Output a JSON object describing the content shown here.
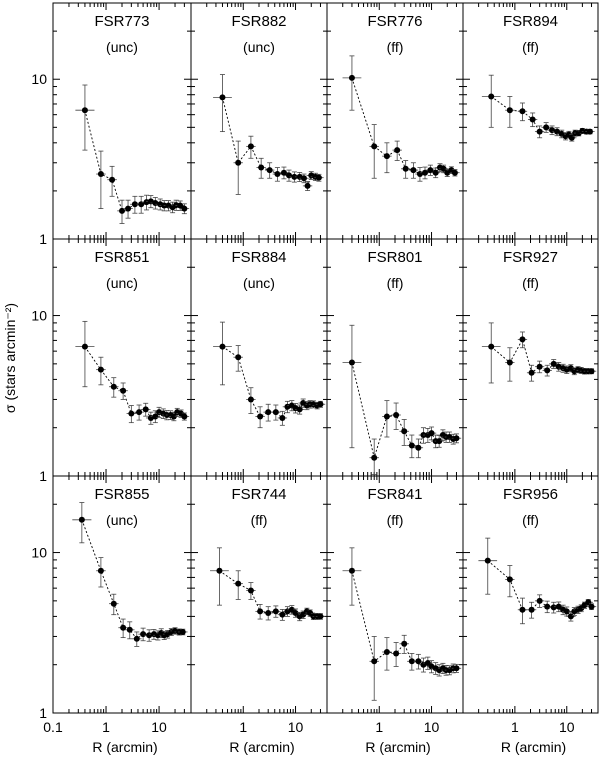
{
  "figure": {
    "xlabel": "R (arcmin)",
    "ylabel": "σ (stars arcmin⁻²)",
    "x_tick_labels": [
      "0.1",
      "1",
      "10"
    ],
    "y_tick_labels": [
      "1",
      "10"
    ],
    "last_col_x_tick_labels": [
      "0.1",
      "1",
      "10"
    ]
  },
  "chart_data": [
    {
      "type": "scatter",
      "panel": "FSR773",
      "label": "(unc)",
      "xscale": "log",
      "yscale": "log",
      "xlim": [
        0.1,
        40
      ],
      "ylim": [
        1,
        30
      ],
      "x": [
        0.4,
        0.8,
        1.3,
        2.0,
        2.6,
        3.5,
        4.6,
        5.8,
        7.0,
        8.5,
        10.5,
        12.5,
        15.0,
        18.0,
        21.0,
        25.0,
        30.0
      ],
      "y": [
        6.4,
        2.55,
        2.35,
        1.5,
        1.55,
        1.65,
        1.65,
        1.7,
        1.72,
        1.68,
        1.65,
        1.62,
        1.62,
        1.58,
        1.63,
        1.62,
        1.55
      ],
      "yerr": [
        2.8,
        1.0,
        0.5,
        0.25,
        0.2,
        0.2,
        0.2,
        0.18,
        0.15,
        0.14,
        0.13,
        0.12,
        0.12,
        0.12,
        0.12,
        0.11,
        0.11
      ]
    },
    {
      "type": "scatter",
      "panel": "FSR882",
      "label": "(unc)",
      "xscale": "log",
      "yscale": "log",
      "xlim": [
        0.1,
        40
      ],
      "ylim": [
        1,
        30
      ],
      "x": [
        0.4,
        0.8,
        1.4,
        2.2,
        3.2,
        4.5,
        6.0,
        7.5,
        9.5,
        12.0,
        14.5,
        17.0,
        20.0,
        24.0,
        28.0
      ],
      "y": [
        7.7,
        3.0,
        3.8,
        2.8,
        2.7,
        2.55,
        2.6,
        2.5,
        2.45,
        2.45,
        2.4,
        2.15,
        2.5,
        2.45,
        2.42
      ],
      "yerr": [
        3.0,
        1.1,
        0.6,
        0.4,
        0.3,
        0.25,
        0.22,
        0.2,
        0.18,
        0.16,
        0.15,
        0.14,
        0.14,
        0.13,
        0.12
      ]
    },
    {
      "type": "scatter",
      "panel": "FSR776",
      "label": "(ff)",
      "xscale": "log",
      "yscale": "log",
      "xlim": [
        0.1,
        40
      ],
      "ylim": [
        1,
        30
      ],
      "x": [
        0.3,
        0.8,
        1.4,
        2.2,
        3.2,
        4.5,
        6.0,
        7.5,
        9.5,
        12.0,
        14.5,
        17.0,
        20.0,
        24.0,
        28.0
      ],
      "y": [
        10.2,
        3.8,
        3.3,
        3.6,
        2.75,
        2.7,
        2.55,
        2.6,
        2.7,
        2.6,
        2.8,
        2.75,
        2.6,
        2.7,
        2.6
      ],
      "yerr": [
        3.8,
        1.4,
        0.7,
        0.5,
        0.35,
        0.3,
        0.25,
        0.22,
        0.2,
        0.18,
        0.16,
        0.15,
        0.14,
        0.13,
        0.12
      ]
    },
    {
      "type": "scatter",
      "panel": "FSR894",
      "label": "(ff)",
      "xscale": "log",
      "yscale": "log",
      "xlim": [
        0.1,
        40
      ],
      "ylim": [
        1,
        30
      ],
      "x": [
        0.35,
        0.8,
        1.4,
        2.2,
        3.0,
        4.0,
        5.2,
        6.5,
        8.0,
        9.5,
        11.0,
        12.5,
        14.5,
        17.0,
        20.0,
        24.0,
        28.0
      ],
      "y": [
        7.8,
        6.4,
        6.3,
        5.6,
        4.7,
        5.0,
        4.8,
        4.7,
        4.55,
        4.4,
        4.5,
        4.3,
        4.6,
        4.6,
        4.75,
        4.7,
        4.7
      ],
      "yerr": [
        2.8,
        1.4,
        0.8,
        0.55,
        0.4,
        0.35,
        0.3,
        0.27,
        0.25,
        0.23,
        0.22,
        0.2,
        0.2,
        0.18,
        0.17,
        0.16,
        0.15
      ]
    },
    {
      "type": "scatter",
      "panel": "FSR851",
      "label": "(unc)",
      "xscale": "log",
      "yscale": "log",
      "xlim": [
        0.1,
        40
      ],
      "ylim": [
        1,
        30
      ],
      "x": [
        0.4,
        0.8,
        1.4,
        2.1,
        3.0,
        4.2,
        5.6,
        7.0,
        8.5,
        10.0,
        12.0,
        14.0,
        16.5,
        19.0,
        22.0,
        26.0,
        30.0
      ],
      "y": [
        6.4,
        4.6,
        3.6,
        3.4,
        2.45,
        2.5,
        2.6,
        2.3,
        2.35,
        2.5,
        2.45,
        2.4,
        2.4,
        2.35,
        2.5,
        2.45,
        2.35
      ],
      "yerr": [
        2.8,
        0.9,
        0.5,
        0.4,
        0.3,
        0.27,
        0.24,
        0.2,
        0.2,
        0.18,
        0.17,
        0.16,
        0.15,
        0.14,
        0.14,
        0.13,
        0.12
      ]
    },
    {
      "type": "scatter",
      "panel": "FSR884",
      "label": "(unc)",
      "xscale": "log",
      "yscale": "log",
      "xlim": [
        0.1,
        40
      ],
      "ylim": [
        1,
        30
      ],
      "x": [
        0.4,
        0.8,
        1.4,
        2.1,
        3.0,
        4.2,
        5.6,
        7.0,
        8.5,
        10.0,
        12.0,
        14.0,
        16.5,
        19.0,
        22.0,
        26.0,
        30.0
      ],
      "y": [
        6.4,
        5.5,
        3.0,
        2.35,
        2.5,
        2.5,
        2.3,
        2.7,
        2.75,
        2.65,
        2.6,
        2.85,
        2.75,
        2.8,
        2.8,
        2.75,
        2.8
      ],
      "yerr": [
        2.7,
        1.0,
        0.55,
        0.35,
        0.3,
        0.27,
        0.23,
        0.22,
        0.2,
        0.18,
        0.17,
        0.17,
        0.16,
        0.15,
        0.14,
        0.13,
        0.12
      ]
    },
    {
      "type": "scatter",
      "panel": "FSR801",
      "label": "(ff)",
      "xscale": "log",
      "yscale": "log",
      "xlim": [
        0.1,
        40
      ],
      "ylim": [
        1,
        30
      ],
      "x": [
        0.3,
        0.8,
        1.4,
        2.1,
        3.0,
        4.2,
        5.6,
        7.0,
        8.5,
        10.0,
        12.0,
        14.0,
        16.5,
        19.0,
        22.0,
        26.0,
        30.0
      ],
      "y": [
        5.1,
        1.3,
        2.35,
        2.4,
        1.9,
        1.55,
        1.5,
        1.8,
        1.8,
        1.85,
        1.65,
        1.65,
        1.8,
        1.75,
        1.75,
        1.7,
        1.72
      ],
      "yerr": [
        3.6,
        0.4,
        0.6,
        0.45,
        0.35,
        0.25,
        0.2,
        0.2,
        0.18,
        0.17,
        0.15,
        0.14,
        0.14,
        0.13,
        0.13,
        0.12,
        0.11
      ]
    },
    {
      "type": "scatter",
      "panel": "FSR927",
      "label": "(ff)",
      "xscale": "log",
      "yscale": "log",
      "xlim": [
        0.1,
        40
      ],
      "ylim": [
        1,
        30
      ],
      "x": [
        0.35,
        0.8,
        1.4,
        2.1,
        3.0,
        4.2,
        5.6,
        7.0,
        8.5,
        10.0,
        12.0,
        14.0,
        16.5,
        19.0,
        22.0,
        26.0,
        30.0
      ],
      "y": [
        6.4,
        5.1,
        7.1,
        4.4,
        4.8,
        4.55,
        5.0,
        4.8,
        4.7,
        4.6,
        4.7,
        4.5,
        4.6,
        4.55,
        4.5,
        4.5,
        4.5
      ],
      "yerr": [
        2.6,
        1.2,
        0.8,
        0.5,
        0.4,
        0.35,
        0.32,
        0.3,
        0.27,
        0.25,
        0.24,
        0.22,
        0.2,
        0.19,
        0.18,
        0.17,
        0.16
      ]
    },
    {
      "type": "scatter",
      "panel": "FSR855",
      "label": "(unc)",
      "xscale": "log",
      "yscale": "log",
      "xlim": [
        0.1,
        40
      ],
      "ylim": [
        1,
        30
      ],
      "x": [
        0.35,
        0.8,
        1.4,
        2.1,
        2.8,
        3.8,
        5.0,
        6.5,
        8.0,
        9.5,
        11.0,
        12.5,
        14.5,
        17.0,
        20.0,
        24.0,
        28.0
      ],
      "y": [
        16.0,
        7.7,
        4.8,
        3.4,
        3.3,
        2.9,
        3.1,
        3.05,
        3.1,
        3.05,
        3.15,
        3.05,
        3.1,
        3.2,
        3.25,
        3.2,
        3.2
      ],
      "yerr": [
        4.5,
        1.6,
        0.7,
        0.45,
        0.4,
        0.3,
        0.28,
        0.25,
        0.22,
        0.2,
        0.2,
        0.18,
        0.17,
        0.16,
        0.15,
        0.14,
        0.13
      ]
    },
    {
      "type": "scatter",
      "panel": "FSR744",
      "label": "(ff)",
      "xscale": "log",
      "yscale": "log",
      "xlim": [
        0.1,
        40
      ],
      "ylim": [
        1,
        30
      ],
      "x": [
        0.35,
        0.8,
        1.4,
        2.1,
        3.0,
        4.2,
        5.6,
        7.0,
        8.5,
        10.0,
        12.0,
        14.0,
        16.5,
        19.0,
        22.0,
        26.0,
        30.0
      ],
      "y": [
        7.7,
        6.4,
        5.8,
        4.3,
        4.2,
        4.3,
        4.1,
        4.3,
        4.4,
        4.2,
        4.0,
        4.1,
        4.3,
        4.2,
        4.0,
        4.0,
        4.0
      ],
      "yerr": [
        3.0,
        1.3,
        0.7,
        0.45,
        0.4,
        0.35,
        0.32,
        0.3,
        0.27,
        0.25,
        0.24,
        0.22,
        0.2,
        0.19,
        0.18,
        0.17,
        0.16
      ]
    },
    {
      "type": "scatter",
      "panel": "FSR841",
      "label": "(ff)",
      "xscale": "log",
      "yscale": "log",
      "xlim": [
        0.1,
        40
      ],
      "ylim": [
        1,
        30
      ],
      "x": [
        0.3,
        0.8,
        1.4,
        2.1,
        3.0,
        4.2,
        5.6,
        7.0,
        8.5,
        10.0,
        12.0,
        14.0,
        16.5,
        19.0,
        22.0,
        26.0,
        30.0
      ],
      "y": [
        7.7,
        2.1,
        2.4,
        2.35,
        2.7,
        2.1,
        2.1,
        2.0,
        2.05,
        1.95,
        1.9,
        1.85,
        1.9,
        1.85,
        1.85,
        1.9,
        1.9
      ],
      "yerr": [
        3.0,
        0.9,
        0.55,
        0.4,
        0.35,
        0.25,
        0.22,
        0.2,
        0.18,
        0.17,
        0.16,
        0.15,
        0.14,
        0.13,
        0.12,
        0.12,
        0.11
      ]
    },
    {
      "type": "scatter",
      "panel": "FSR956",
      "label": "(ff)",
      "xscale": "log",
      "yscale": "log",
      "xlim": [
        0.1,
        40
      ],
      "ylim": [
        1,
        30
      ],
      "x": [
        0.3,
        0.8,
        1.4,
        2.1,
        3.0,
        4.2,
        5.6,
        7.0,
        8.5,
        10.0,
        12.0,
        14.0,
        16.5,
        19.0,
        22.0,
        26.0,
        30.0
      ],
      "y": [
        8.9,
        6.8,
        4.4,
        4.4,
        5.0,
        4.6,
        4.55,
        4.6,
        4.4,
        4.3,
        4.0,
        4.3,
        4.4,
        4.5,
        4.7,
        4.9,
        4.6
      ],
      "yerr": [
        3.4,
        1.5,
        0.8,
        0.5,
        0.45,
        0.38,
        0.35,
        0.32,
        0.3,
        0.28,
        0.26,
        0.24,
        0.23,
        0.22,
        0.21,
        0.2,
        0.19
      ]
    }
  ]
}
